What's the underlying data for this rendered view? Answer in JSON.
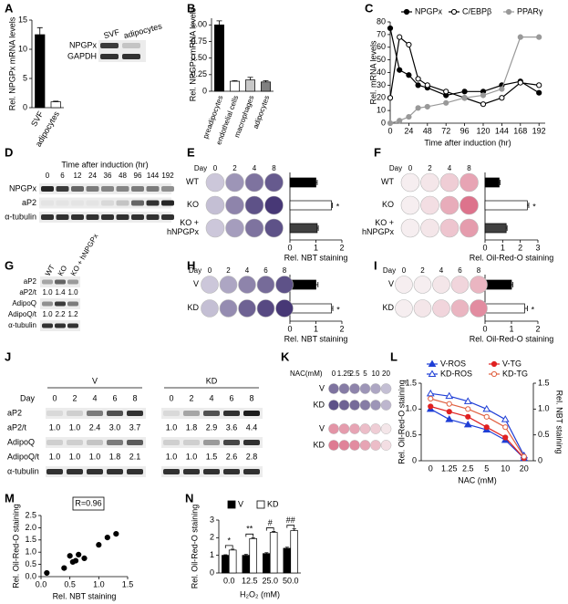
{
  "panels": {
    "letters": [
      "A",
      "B",
      "C",
      "D",
      "E",
      "F",
      "G",
      "H",
      "I",
      "J",
      "K",
      "L",
      "M",
      "N"
    ],
    "A": {
      "lanes": [
        "SVF",
        "adipocytes"
      ],
      "rows": [
        "NPGPx",
        "GAPDH"
      ]
    },
    "D": {
      "title": "Time after induction (hr)",
      "lanes": [
        "0",
        "6",
        "12",
        "24",
        "36",
        "48",
        "96",
        "144",
        "192"
      ],
      "rows": [
        "NPGPx",
        "aP2",
        "α-tubulin"
      ]
    },
    "E": {
      "day": "Day",
      "days": [
        "0",
        "2",
        "4",
        "8"
      ]
    },
    "F": {
      "day": "Day",
      "days": [
        "0",
        "2",
        "4",
        "8"
      ]
    },
    "G": {
      "lanes": [
        "WT",
        "KO",
        "KO + hNPGPx"
      ],
      "rows": [
        {
          "label": "aP2"
        },
        {
          "label": "aP2/t",
          "ratios": [
            "1.0",
            "1.4",
            "1.0"
          ]
        },
        {
          "label": "AdipoQ"
        },
        {
          "label": "AdipoQ/t",
          "ratios": [
            "1.0",
            "2.2",
            "1.2"
          ]
        },
        {
          "label": "α-tubulin"
        }
      ]
    },
    "H": {
      "day": "Day",
      "days": [
        "0",
        "2",
        "4",
        "6",
        "8"
      ]
    },
    "I": {
      "day": "Day",
      "days": [
        "0",
        "2",
        "4",
        "6",
        "8"
      ]
    },
    "J": {
      "groups": [
        "V",
        "KD"
      ],
      "day": "Day",
      "days": [
        "0",
        "2",
        "4",
        "6",
        "8",
        "0",
        "2",
        "4",
        "6",
        "8"
      ],
      "rows": [
        {
          "label": "aP2"
        },
        {
          "label": "aP2/t",
          "ratios": [
            "1.0",
            "1.0",
            "2.4",
            "3.0",
            "3.7",
            "1.0",
            "1.8",
            "2.9",
            "3.6",
            "4.4"
          ]
        },
        {
          "label": "AdipoQ"
        },
        {
          "label": "AdipoQ/t",
          "ratios": [
            "1.0",
            "1.0",
            "1.0",
            "1.8",
            "2.1",
            "1.0",
            "1.0",
            "1.5",
            "2.6",
            "2.8"
          ]
        },
        {
          "label": "α-tubulin"
        }
      ]
    },
    "K": {
      "title": "NAC(mM)",
      "doses": [
        "0",
        "1.25",
        "2.5",
        "5",
        "10",
        "20"
      ],
      "rows": [
        "V",
        "KD",
        "V",
        "KD"
      ]
    }
  },
  "chart_data": [
    {
      "type": "bar",
      "ylabel": "Rel. NPGPx mRNA levels",
      "categories": [
        "SVF",
        "adipocytes"
      ],
      "values": [
        12.5,
        1.0
      ],
      "errors": [
        1.2,
        0.1
      ],
      "colors": [
        "#000000",
        "#ffffff"
      ],
      "ylim": [
        0,
        15
      ],
      "yticks": [
        0,
        5,
        10,
        15
      ]
    },
    {
      "type": "bar",
      "ylabel": "Rel. NPGPx mRNA levels",
      "categories": [
        "preadipocytes",
        "endothelial cells",
        "macrophages",
        "adipocytes"
      ],
      "values": [
        1.0,
        0.15,
        0.17,
        0.14
      ],
      "errors": [
        0.06,
        0.01,
        0.04,
        0.02
      ],
      "colors": [
        "#000000",
        "#ffffff",
        "#c8c8c8",
        "#808080"
      ],
      "ylim": [
        0,
        1.1
      ],
      "yticks": [
        0,
        0.25,
        {
          "value": 0.5,
          "label": "0.50"
        },
        0.75,
        {
          "value": 1,
          "label": "1.00"
        }
      ]
    },
    {
      "type": "line",
      "xlabel": "Time after induction (hr)",
      "ylabel": "Rel. mRNA levels",
      "x": [
        0,
        12,
        24,
        36,
        48,
        72,
        96,
        120,
        144,
        168,
        192
      ],
      "xlim": [
        0,
        200
      ],
      "xticks": [
        0,
        24,
        48,
        72,
        96,
        120,
        144,
        168,
        192
      ],
      "ylim": [
        0,
        80
      ],
      "yticks": [
        0,
        10,
        20,
        30,
        40,
        50,
        60,
        70,
        80
      ],
      "series": [
        {
          "name": "NPGPx",
          "color": "#000000",
          "marker": "circle",
          "filled": true,
          "values": [
            75,
            42,
            38,
            30,
            28,
            22,
            25,
            25,
            30,
            33,
            24
          ]
        },
        {
          "name": "C/EBPβ",
          "color": "#000000",
          "marker": "circle",
          "filled": false,
          "values": [
            20,
            68,
            62,
            35,
            30,
            25,
            20,
            15,
            20,
            32,
            30
          ]
        },
        {
          "name": "PPARγ",
          "color": "#999999",
          "marker": "circle",
          "filled": true,
          "values": [
            0,
            2,
            5,
            12,
            13,
            16,
            20,
            22,
            27,
            68,
            68
          ]
        }
      ]
    },
    {
      "type": "bar",
      "orientation": "horizontal",
      "xlabel": "Rel. NBT staining",
      "categories": [
        "WT",
        "KO",
        "KO +\nhNPGPx"
      ],
      "values": [
        1.0,
        1.6,
        1.05
      ],
      "errors": [
        0.05,
        0.03,
        0.04
      ],
      "colors": [
        "#000000",
        "#ffffff",
        "#404040"
      ],
      "xlim": [
        0,
        2
      ],
      "xticks": [
        0,
        1,
        2
      ],
      "annotation": {
        "text": "*",
        "category": "KO"
      }
    },
    {
      "type": "bar",
      "orientation": "horizontal",
      "xlabel": "Rel. Oil-Red-O staining",
      "categories": [
        "WT",
        "KO",
        "KO +\nhNPGPx"
      ],
      "values": [
        0.8,
        2.4,
        1.2
      ],
      "errors": [
        0.05,
        0.08,
        0.05
      ],
      "colors": [
        "#000000",
        "#ffffff",
        "#404040"
      ],
      "xlim": [
        0,
        3
      ],
      "xticks": [
        0,
        1,
        2,
        3
      ],
      "annotation": {
        "text": "*",
        "category": "KO"
      }
    },
    {
      "type": "bar",
      "orientation": "horizontal",
      "xlabel": "Rel. NBT staining",
      "categories": [
        "V",
        "KD"
      ],
      "values": [
        1.0,
        1.6
      ],
      "errors": [
        0.08,
        0.05
      ],
      "colors": [
        "#000000",
        "#ffffff"
      ],
      "xlim": [
        0,
        2
      ],
      "xticks": [
        0,
        1,
        2
      ],
      "annotation": {
        "text": "*",
        "category": "KD"
      }
    },
    {
      "type": "bar",
      "orientation": "horizontal",
      "xlabel": "Rel. Oil-Red-O staining",
      "categories": [
        "V",
        "KD"
      ],
      "values": [
        1.0,
        1.5
      ],
      "errors": [
        0.05,
        0.1
      ],
      "colors": [
        "#000000",
        "#ffffff"
      ],
      "xlim": [
        0,
        2
      ],
      "xticks": [
        0,
        1,
        2
      ],
      "annotation": {
        "text": "*",
        "category": "KD"
      }
    },
    {
      "type": "line",
      "xlabel": "NAC (mM)",
      "ylabel": "Rel. Oil-Red-O staining",
      "y2label": "Rel. NBT staining",
      "categories": [
        "0",
        "1.25",
        "2.5",
        "5",
        "10",
        "20"
      ],
      "ylim": [
        0,
        1.5
      ],
      "yticks": [
        0,
        0.5,
        {
          "value": 1,
          "label": "1.0"
        },
        1.5
      ],
      "y2lim": [
        0,
        1.5
      ],
      "y2ticks": [
        0,
        0.5,
        {
          "value": 1,
          "label": "1.0"
        },
        1.5
      ],
      "series": [
        {
          "name": "V-ROS",
          "color": "#1f3fd6",
          "marker": "triangle",
          "filled": true,
          "axis": "y2",
          "values": [
            1.0,
            0.8,
            0.7,
            0.6,
            0.4,
            0.05
          ]
        },
        {
          "name": "V-TG",
          "color": "#e02020",
          "marker": "circle",
          "filled": true,
          "values": [
            1.05,
            0.95,
            0.85,
            0.65,
            0.45,
            0.05
          ]
        },
        {
          "name": "KD-ROS",
          "color": "#1f3fd6",
          "marker": "triangle",
          "filled": false,
          "axis": "y2",
          "values": [
            1.3,
            1.25,
            1.15,
            1.0,
            0.8,
            0.1
          ]
        },
        {
          "name": "KD-TG",
          "color": "#e06040",
          "marker": "circle",
          "filled": false,
          "values": [
            1.2,
            1.1,
            1.0,
            0.85,
            0.65,
            0.08
          ]
        }
      ]
    },
    {
      "type": "scatter",
      "xlabel": "Rel. NBT staining",
      "ylabel": "Rel. Oil-Red-O staining",
      "annotation": "R=0.96",
      "x": [
        0.1,
        0.4,
        0.5,
        0.55,
        0.6,
        0.65,
        0.75,
        1.0,
        1.15,
        1.3
      ],
      "y": [
        0.15,
        0.35,
        0.85,
        0.6,
        0.65,
        0.9,
        0.75,
        1.3,
        1.6,
        1.75
      ],
      "xlim": [
        0,
        1.5
      ],
      "xticks": [
        {
          "value": 0,
          "label": "0.0"
        },
        0.5,
        {
          "value": 1,
          "label": "1.0"
        },
        1.5
      ],
      "ylim": [
        0,
        2.5
      ],
      "yticks": [
        {
          "value": 0,
          "label": "0.0"
        },
        0.5,
        {
          "value": 1,
          "label": "1.0"
        },
        1.5,
        {
          "value": 2,
          "label": "2.0"
        },
        2.5
      ]
    },
    {
      "type": "bar",
      "xlabel": "H₂O₂ (mM)",
      "ylabel": "Rel. Oil-Red-O staining",
      "categories": [
        "0.0",
        "12.5",
        "25.0",
        "50.0"
      ],
      "series": [
        {
          "name": "V",
          "color": "#000000",
          "values": [
            1.0,
            1.0,
            1.1,
            1.4
          ],
          "errors": [
            0.03,
            0.05,
            0.05,
            0.06
          ]
        },
        {
          "name": "KD",
          "color": "#ffffff",
          "values": [
            1.3,
            1.95,
            2.3,
            2.4
          ],
          "errors": [
            0.05,
            0.05,
            0.05,
            0.1
          ]
        }
      ],
      "significance": [
        "*",
        "**",
        "#",
        "##"
      ],
      "ylim": [
        0,
        3
      ],
      "yticks": [
        0,
        1,
        2,
        3
      ]
    }
  ]
}
